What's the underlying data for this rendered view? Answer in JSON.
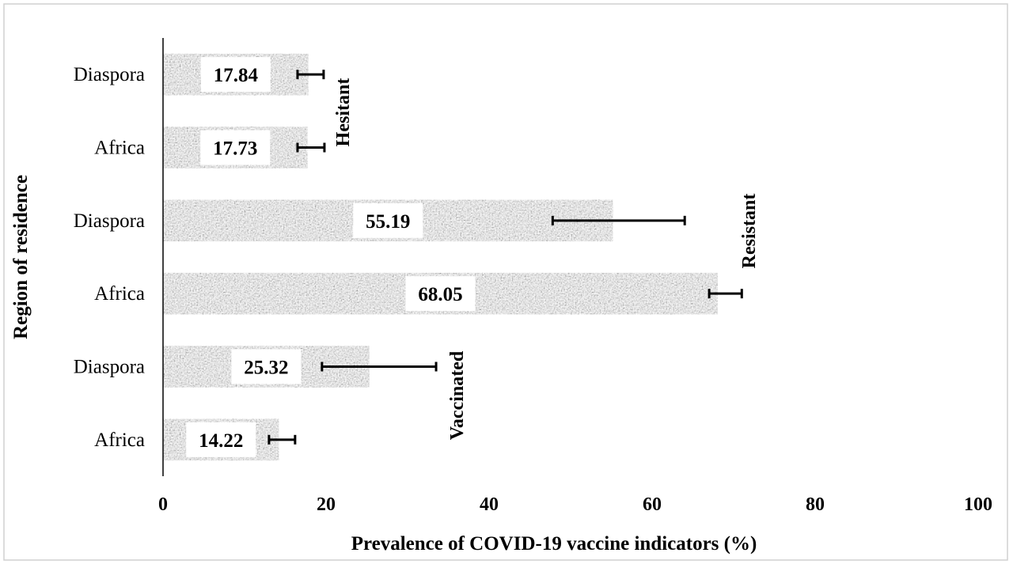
{
  "chart_data": {
    "type": "bar",
    "orientation": "horizontal",
    "xlabel": "Prevalence of COVID-19 vaccine indicators  (%)",
    "ylabel": "Region of residence",
    "xlim": [
      0,
      100
    ],
    "x_ticks": [
      "0",
      "20",
      "40",
      "60",
      "80",
      "100"
    ],
    "bar_fill": "#8c8c8c",
    "groups": [
      "Hesitant",
      "Resistant",
      "Vaccinated"
    ],
    "bars": [
      {
        "category": "Diaspora",
        "group": "Hesitant",
        "value": 17.84,
        "value_label": "17.84",
        "err_low": 16.5,
        "err_high": 19.7
      },
      {
        "category": "Africa",
        "group": "Hesitant",
        "value": 17.73,
        "value_label": "17.73",
        "err_low": 16.5,
        "err_high": 19.8
      },
      {
        "category": "Diaspora",
        "group": "Resistant",
        "value": 55.19,
        "value_label": "55.19",
        "err_low": 47.8,
        "err_high": 64.0
      },
      {
        "category": "Africa",
        "group": "Resistant",
        "value": 68.05,
        "value_label": "68.05",
        "err_low": 67.0,
        "err_high": 71.0
      },
      {
        "category": "Diaspora",
        "group": "Vaccinated",
        "value": 25.32,
        "value_label": "25.32",
        "err_low": 19.5,
        "err_high": 33.5
      },
      {
        "category": "Africa",
        "group": "Vaccinated",
        "value": 14.22,
        "value_label": "14.22",
        "err_low": 13.0,
        "err_high": 16.2
      }
    ]
  }
}
